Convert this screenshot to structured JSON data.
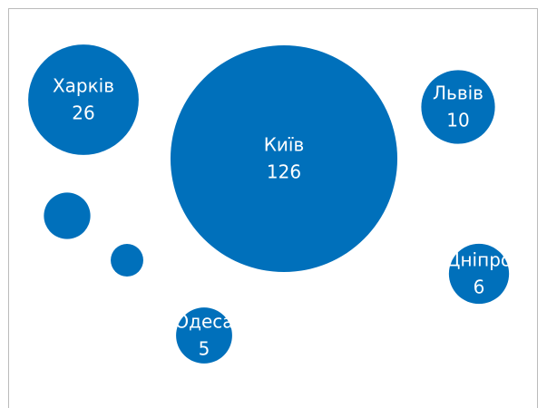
{
  "chart_data": {
    "type": "bubble",
    "categories": [
      "Харків",
      null,
      null,
      "Київ",
      "Львів",
      "Дніпро",
      "Одеса"
    ],
    "values": [
      26,
      3,
      1,
      126,
      10,
      6,
      5
    ],
    "color": "#0070bb"
  }
}
